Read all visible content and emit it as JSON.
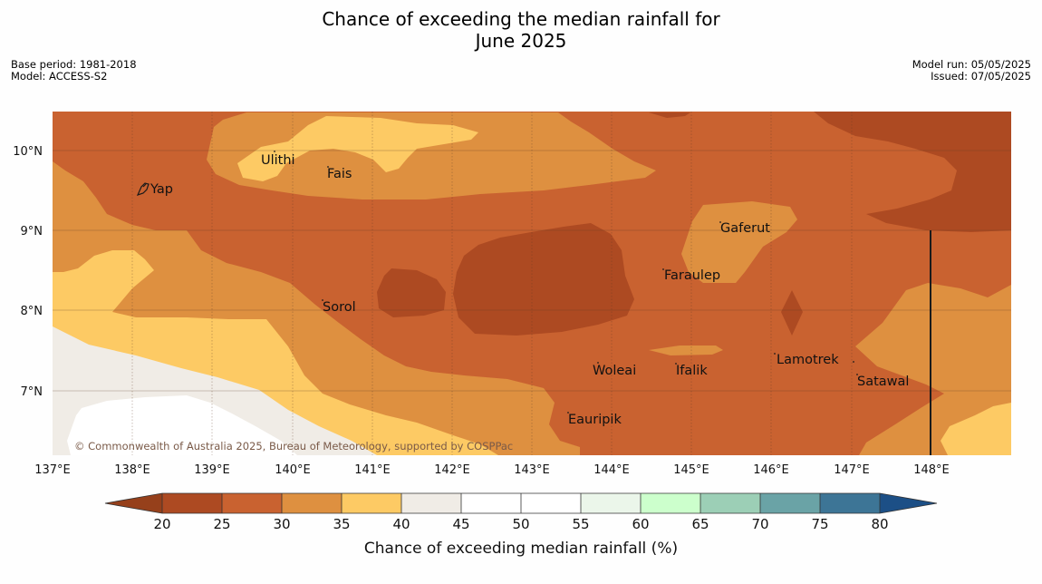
{
  "title": {
    "line1": "Chance of exceeding the median rainfall for",
    "line2": "June 2025"
  },
  "info_left": [
    "Base period: 1981-2018",
    "Model: ACCESS-S2"
  ],
  "info_right": [
    "Model run: 05/05/2025",
    "Issued: 07/05/2025"
  ],
  "lat_ticks": [
    "10°N",
    "9°N",
    "8°N",
    "7°N"
  ],
  "lon_ticks": [
    "137°E",
    "138°E",
    "139°E",
    "140°E",
    "141°E",
    "142°E",
    "143°E",
    "144°E",
    "145°E",
    "146°E",
    "147°E",
    "148°E"
  ],
  "places": [
    "Yap",
    "Ulithi",
    "Fais",
    "Gaferut",
    "Faraulep",
    "Sorol",
    "Woleai",
    "Ifalik",
    "Lamotrek",
    "Satawal",
    "Eauripik"
  ],
  "copyright": "© Commonwealth of Australia 2025, Bureau of Meteorology, supported by COSPPac",
  "colorbar": {
    "label": "Chance of exceeding median rainfall (%)",
    "ticks": [
      "20",
      "25",
      "30",
      "35",
      "40",
      "45",
      "50",
      "55",
      "60",
      "65",
      "70",
      "75",
      "80"
    ],
    "colors": {
      "below_20": "#96401b",
      "20-25": "#ad4a22",
      "25-30": "#c96230",
      "30-35": "#de9040",
      "35-40": "#fdca64",
      "40-45": "#f0ece6",
      "45-50": "#ffffff",
      "50-55": "#ffffff",
      "55-60": "#ebf6ea",
      "60-65": "#ccffcc",
      "65-70": "#9ccfb6",
      "70-75": "#6aa3a6",
      "75-80": "#3d7596",
      "above_80": "#1c4f86"
    }
  }
}
